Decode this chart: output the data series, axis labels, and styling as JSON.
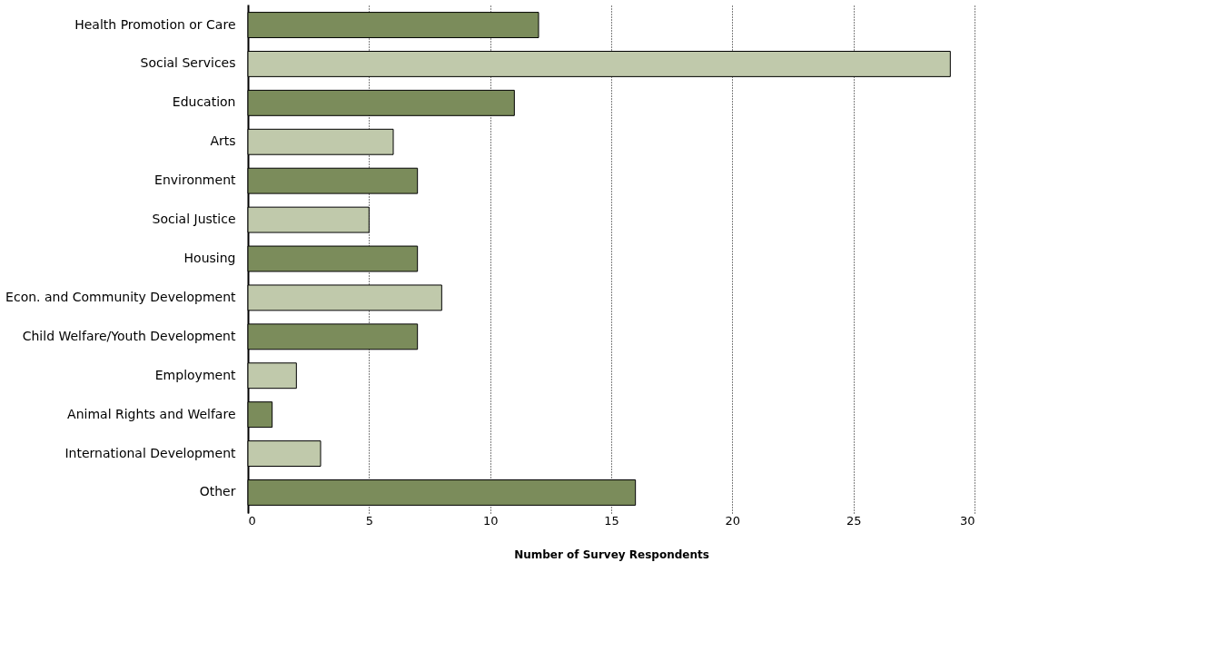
{
  "chart_data": {
    "type": "bar",
    "orientation": "horizontal",
    "xlabel": "Number of Survey Respondents",
    "categories": [
      "Health Promotion or Care",
      "Social Services",
      "Education",
      "Arts",
      "Environment",
      "Social Justice",
      "Housing",
      "Econ. and Community Development",
      "Child Welfare/Youth Development",
      "Employment",
      "Animal Rights and Welfare",
      "International Development",
      "Other"
    ],
    "values": [
      12,
      29,
      11,
      6,
      7,
      5,
      7,
      8,
      7,
      2,
      1,
      3,
      16
    ],
    "colors": [
      "#7b8c5b",
      "#c0c9ab",
      "#7b8c5b",
      "#c0c9ab",
      "#7b8c5b",
      "#c0c9ab",
      "#7b8c5b",
      "#c0c9ab",
      "#7b8c5b",
      "#c0c9ab",
      "#7b8c5b",
      "#c0c9ab",
      "#7b8c5b"
    ],
    "xlim": [
      0,
      30
    ],
    "xticks": [
      0,
      5,
      10,
      15,
      20,
      25,
      30
    ],
    "grid": "x",
    "legend": false
  }
}
